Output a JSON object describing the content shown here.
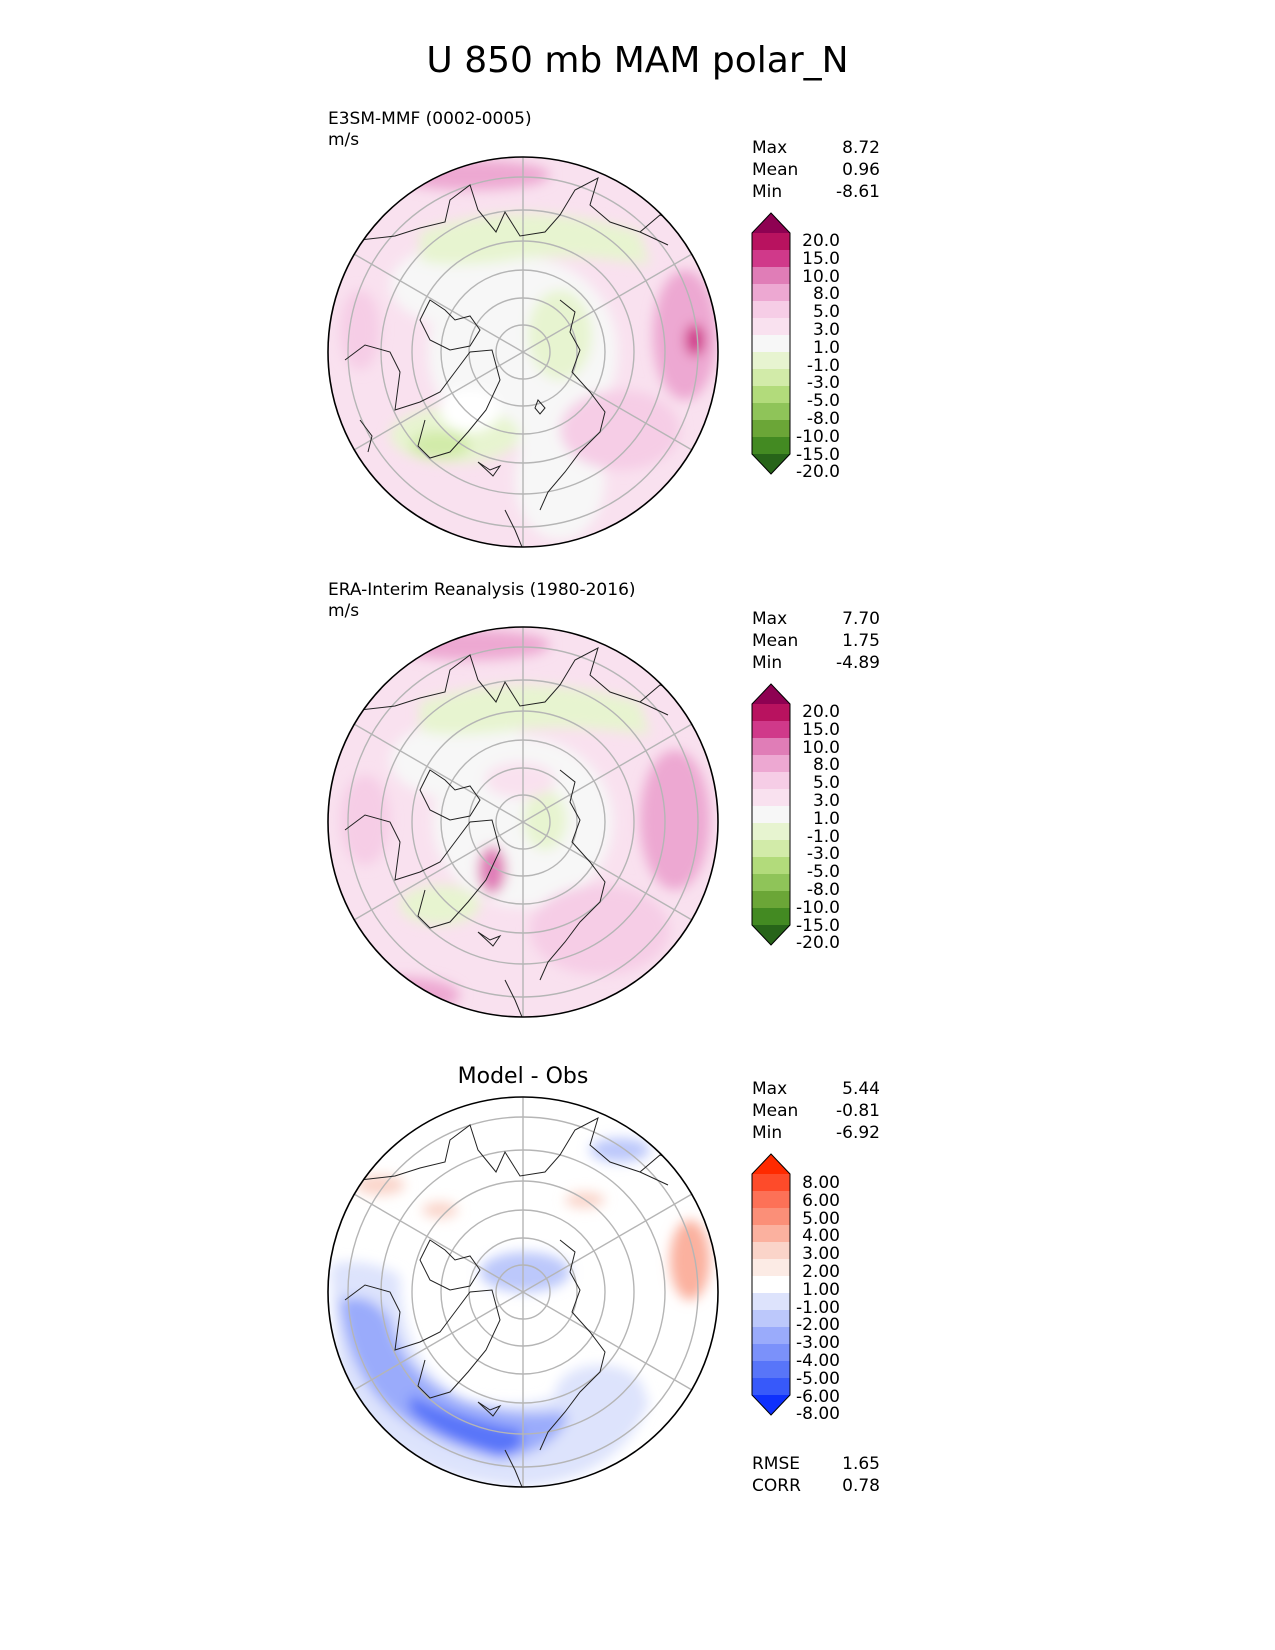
{
  "figure": {
    "title": "U 850 mb MAM polar_N"
  },
  "chart_data": [
    {
      "type": "heatmap",
      "projection": "north-polar-stereographic",
      "title": "E3SM-MMF (0002-0005)",
      "units": "m/s",
      "stats": {
        "max": "8.72",
        "mean": "0.96",
        "min": "-8.61"
      },
      "colorbar": {
        "levels": [
          "20.0",
          "15.0",
          "10.0",
          "8.0",
          "5.0",
          "3.0",
          "1.0",
          "-1.0",
          "-3.0",
          "-5.0",
          "-8.0",
          "-10.0",
          "-15.0",
          "-20.0"
        ],
        "colors": [
          "#8e0152",
          "#b8125f",
          "#d0398a",
          "#e07db7",
          "#eda8d2",
          "#f6cde6",
          "#f9e1ef",
          "#f7f7f7",
          "#e7f4d0",
          "#d2eba9",
          "#b2db7b",
          "#8fc459",
          "#6ba637",
          "#438a22",
          "#276419"
        ]
      }
    },
    {
      "type": "heatmap",
      "projection": "north-polar-stereographic",
      "title": "ERA-Interim Reanalysis (1980-2016)",
      "units": "m/s",
      "stats": {
        "max": "7.70",
        "mean": "1.75",
        "min": "-4.89"
      },
      "colorbar": {
        "levels": [
          "20.0",
          "15.0",
          "10.0",
          "8.0",
          "5.0",
          "3.0",
          "1.0",
          "-1.0",
          "-3.0",
          "-5.0",
          "-8.0",
          "-10.0",
          "-15.0",
          "-20.0"
        ],
        "colors": [
          "#8e0152",
          "#b8125f",
          "#d0398a",
          "#e07db7",
          "#eda8d2",
          "#f6cde6",
          "#f9e1ef",
          "#f7f7f7",
          "#e7f4d0",
          "#d2eba9",
          "#b2db7b",
          "#8fc459",
          "#6ba637",
          "#438a22",
          "#276419"
        ]
      }
    },
    {
      "type": "heatmap",
      "projection": "north-polar-stereographic",
      "title": "Model - Obs",
      "stats": {
        "max": "5.44",
        "mean": "-0.81",
        "min": "-6.92"
      },
      "metrics": {
        "rmse": "1.65",
        "corr": "0.78"
      },
      "colorbar": {
        "levels": [
          "8.00",
          "6.00",
          "5.00",
          "4.00",
          "3.00",
          "2.00",
          "1.00",
          "-1.00",
          "-2.00",
          "-3.00",
          "-4.00",
          "-5.00",
          "-6.00",
          "-8.00"
        ],
        "colors": [
          "#ff2a00",
          "#fe4b2a",
          "#fd7157",
          "#fb8f78",
          "#fbb19f",
          "#fad4c9",
          "#fcebe5",
          "#ffffff",
          "#dde3fc",
          "#bcc8fb",
          "#9aabfb",
          "#7b91fa",
          "#5875f9",
          "#3759fa",
          "#0e30fd"
        ]
      }
    }
  ],
  "labels": {
    "max": "Max",
    "mean": "Mean",
    "min": "Min",
    "rmse": "RMSE",
    "corr": "CORR"
  }
}
